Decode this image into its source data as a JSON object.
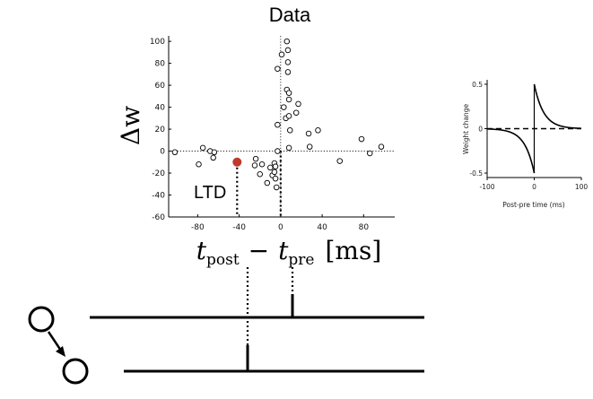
{
  "chart_data": [
    {
      "type": "scatter",
      "title": "Data",
      "xlabel": "t_post − t_pre [ms]",
      "xlabel_main": "t",
      "xlabel_sub1": "post",
      "xlabel_sub2": "pre",
      "xlabel_unit": "[ms]",
      "ylabel": "Δw",
      "xlim": [
        -108,
        110
      ],
      "ylim": [
        -60,
        105
      ],
      "xticks": [
        -80,
        -40,
        0,
        40,
        80
      ],
      "xtick_labels": [
        "-80",
        "-40",
        "0",
        "40",
        "80"
      ],
      "yticks": [
        -60,
        -40,
        -20,
        0,
        20,
        40,
        60,
        80,
        100
      ],
      "ytick_labels": [
        "-60",
        "-40",
        "-20",
        "0",
        "20",
        "40",
        "60",
        "80",
        "100"
      ],
      "annotation": "LTD",
      "highlight_point": {
        "x": -42,
        "y": -10,
        "color": "#c0392b"
      },
      "points": [
        {
          "x": -102,
          "y": -1
        },
        {
          "x": -79,
          "y": -12
        },
        {
          "x": -75,
          "y": 3
        },
        {
          "x": -68,
          "y": 0
        },
        {
          "x": -65,
          "y": -6
        },
        {
          "x": -64,
          "y": -1
        },
        {
          "x": -25,
          "y": -13
        },
        {
          "x": -24,
          "y": -7
        },
        {
          "x": -20,
          "y": -21
        },
        {
          "x": -18,
          "y": -12
        },
        {
          "x": -13,
          "y": -29
        },
        {
          "x": -10,
          "y": -15
        },
        {
          "x": -8,
          "y": -22
        },
        {
          "x": -6,
          "y": -19
        },
        {
          "x": -6,
          "y": -11
        },
        {
          "x": -5,
          "y": -14
        },
        {
          "x": -4,
          "y": -33
        },
        {
          "x": -5,
          "y": -25
        },
        {
          "x": -3,
          "y": 0
        },
        {
          "x": -3,
          "y": 75
        },
        {
          "x": -3,
          "y": 24
        },
        {
          "x": 1,
          "y": 88
        },
        {
          "x": 3,
          "y": 40
        },
        {
          "x": 5,
          "y": 30
        },
        {
          "x": 6,
          "y": 100
        },
        {
          "x": 6,
          "y": 56
        },
        {
          "x": 7,
          "y": 92
        },
        {
          "x": 7,
          "y": 81
        },
        {
          "x": 7,
          "y": 72
        },
        {
          "x": 8,
          "y": 53
        },
        {
          "x": 8,
          "y": 47
        },
        {
          "x": 8,
          "y": 32
        },
        {
          "x": 9,
          "y": 19
        },
        {
          "x": 8,
          "y": 3
        },
        {
          "x": 15,
          "y": 35
        },
        {
          "x": 17,
          "y": 43
        },
        {
          "x": 27,
          "y": 16
        },
        {
          "x": 28,
          "y": 4
        },
        {
          "x": 36,
          "y": 19
        },
        {
          "x": 57,
          "y": -9
        },
        {
          "x": 78,
          "y": 11
        },
        {
          "x": 86,
          "y": -2
        },
        {
          "x": 97,
          "y": 4
        }
      ]
    },
    {
      "type": "line",
      "xlabel": "Post-pre time (ms)",
      "ylabel": "Weight change",
      "xlim": [
        -100,
        100
      ],
      "ylim": [
        -0.55,
        0.55
      ],
      "xticks": [
        -100,
        0,
        100
      ],
      "xtick_labels": [
        "-100",
        "0",
        "100"
      ],
      "yticks": [
        -0.5,
        0,
        0.5
      ],
      "ytick_labels": [
        "-0.5",
        "0",
        "0.5"
      ],
      "A_plus": 0.5,
      "A_minus": -0.5,
      "tau_ms": 20,
      "zero_line": "dashed"
    }
  ]
}
